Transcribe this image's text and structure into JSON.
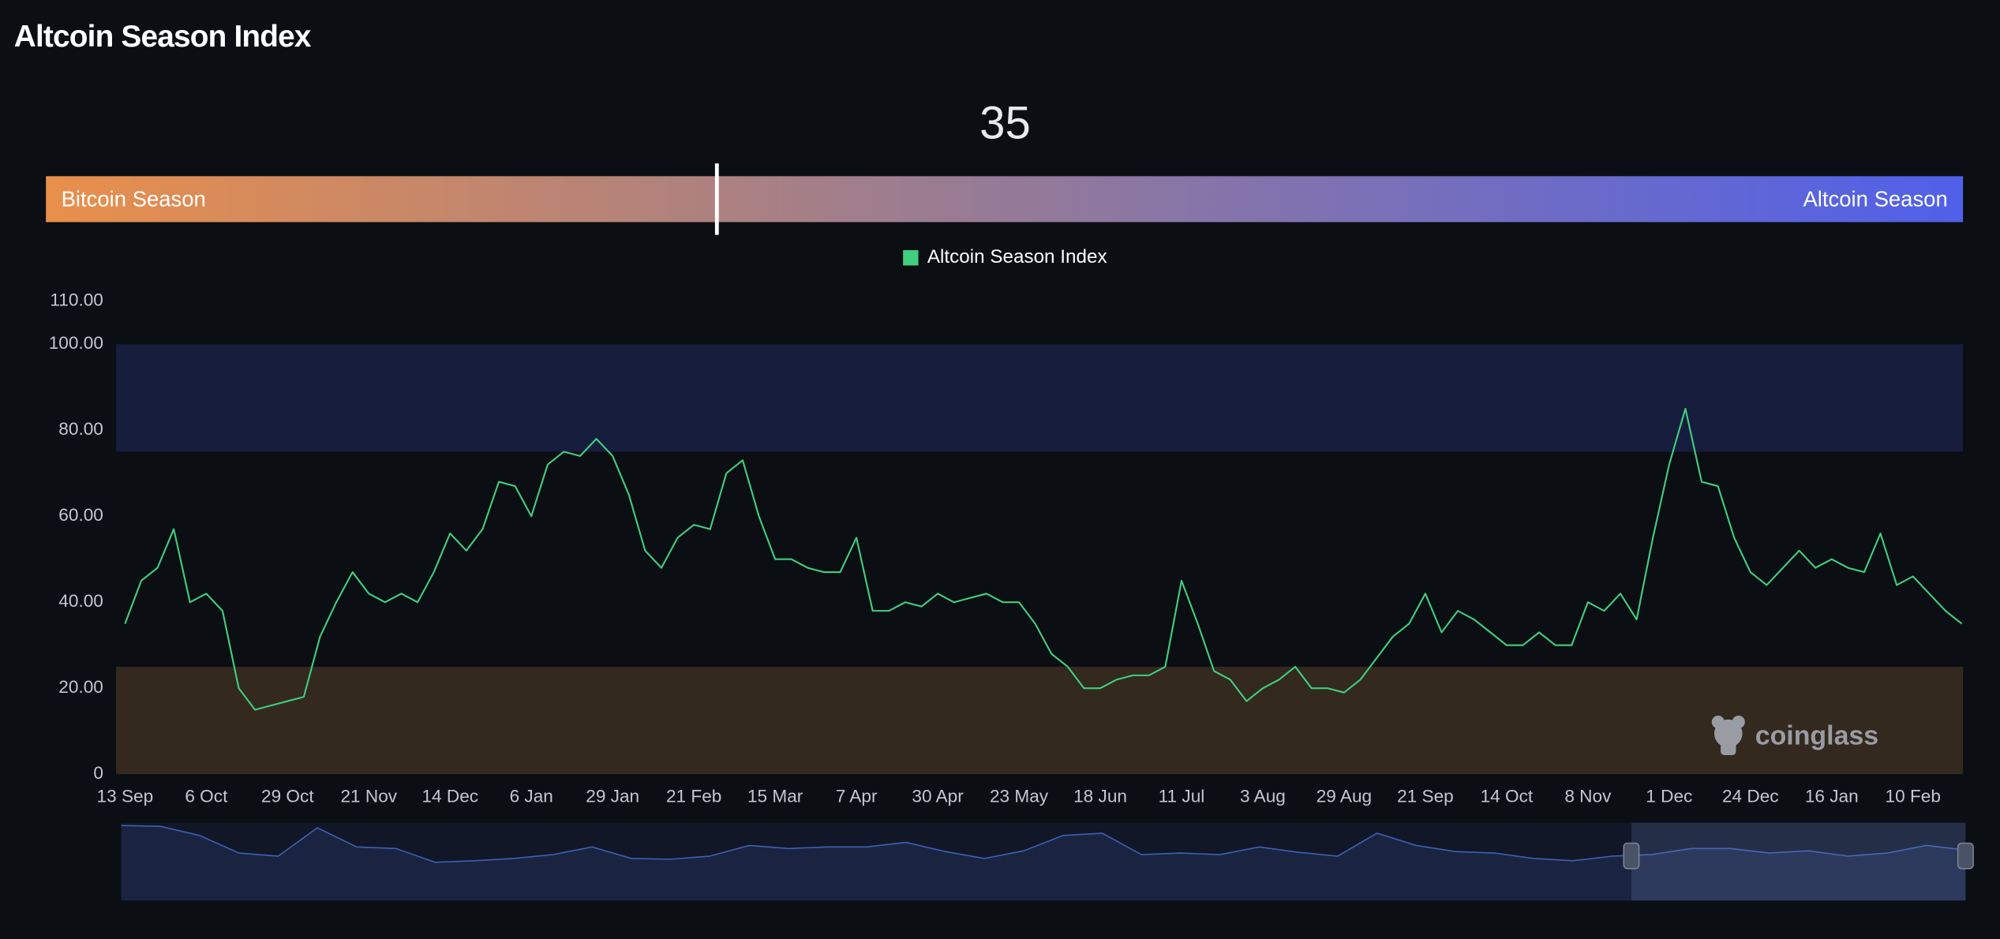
{
  "gauge": {
    "value": 35,
    "range": [
      0,
      100
    ],
    "left_label": "Bitcoin Season",
    "right_label": "Altcoin Season"
  },
  "chart_data": {
    "type": "line",
    "title": "Altcoin Season Index",
    "watermark": "coinglass",
    "categories": [
      "13 Sep",
      null,
      null,
      null,
      null,
      "6 Oct",
      null,
      null,
      null,
      null,
      "29 Oct",
      null,
      null,
      null,
      null,
      "21 Nov",
      null,
      null,
      null,
      null,
      "14 Dec",
      null,
      null,
      null,
      null,
      "6 Jan",
      null,
      null,
      null,
      null,
      "29 Jan",
      null,
      null,
      null,
      null,
      "21 Feb",
      null,
      null,
      null,
      null,
      "15 Mar",
      null,
      null,
      null,
      null,
      "7 Apr",
      null,
      null,
      null,
      null,
      "30 Apr",
      null,
      null,
      null,
      null,
      "23 May",
      null,
      null,
      null,
      null,
      "18 Jun",
      null,
      null,
      null,
      null,
      "11 Jul",
      null,
      null,
      null,
      null,
      "3 Aug",
      null,
      null,
      null,
      null,
      "29 Aug",
      null,
      null,
      null,
      null,
      "21 Sep",
      null,
      null,
      null,
      null,
      "14 Oct",
      null,
      null,
      null,
      null,
      "8 Nov",
      null,
      null,
      null,
      null,
      "1 Dec",
      null,
      null,
      null,
      null,
      "24 Dec",
      null,
      null,
      null,
      null,
      "16 Jan",
      null,
      null,
      null,
      null,
      "10 Feb",
      null,
      null,
      null
    ],
    "series": [
      {
        "name": "Altcoin Season Index",
        "color": "#3fcf7f",
        "values": [
          35,
          45,
          48,
          57,
          40,
          42,
          38,
          20,
          15,
          16,
          17,
          18,
          32,
          40,
          47,
          42,
          40,
          42,
          40,
          47,
          56,
          52,
          57,
          68,
          67,
          60,
          72,
          75,
          74,
          78,
          74,
          65,
          52,
          48,
          55,
          58,
          57,
          70,
          73,
          60,
          50,
          50,
          48,
          47,
          47,
          55,
          38,
          38,
          40,
          39,
          42,
          40,
          41,
          42,
          40,
          40,
          35,
          28,
          25,
          20,
          20,
          22,
          23,
          23,
          25,
          45,
          35,
          24,
          22,
          17,
          20,
          22,
          25,
          20,
          20,
          19,
          22,
          27,
          32,
          35,
          42,
          33,
          38,
          36,
          33,
          30,
          30,
          33,
          30,
          30,
          40,
          38,
          42,
          36,
          55,
          72,
          85,
          68,
          67,
          55,
          47,
          44,
          48,
          52,
          48,
          50,
          48,
          47,
          56,
          44,
          46,
          42,
          38,
          35
        ]
      }
    ],
    "ylim": [
      0,
      110
    ],
    "yticks": [
      0,
      {
        "value": 20,
        "label": "20.00"
      },
      {
        "value": 40,
        "label": "40.00"
      },
      {
        "value": 60,
        "label": "60.00"
      },
      {
        "value": 80,
        "label": "80.00"
      },
      {
        "value": 100,
        "label": "100.00"
      },
      {
        "value": 110,
        "label": "110.00"
      }
    ],
    "bands": [
      {
        "from": 75,
        "to": 100,
        "color": "#161d3d"
      },
      {
        "from": 0,
        "to": 25,
        "color": "#33291f"
      }
    ],
    "legend": "top"
  },
  "navigator": {
    "color": "#3d5fb5",
    "values": [
      98,
      97,
      85,
      62,
      58,
      95,
      70,
      68,
      50,
      52,
      55,
      60,
      70,
      55,
      54,
      58,
      72,
      68,
      70,
      70,
      76,
      64,
      55,
      65,
      85,
      88,
      60,
      62,
      60,
      70,
      63,
      58,
      88,
      72,
      64,
      62,
      55,
      52,
      58,
      60,
      68,
      68,
      62,
      65,
      58,
      62,
      72,
      66
    ]
  }
}
